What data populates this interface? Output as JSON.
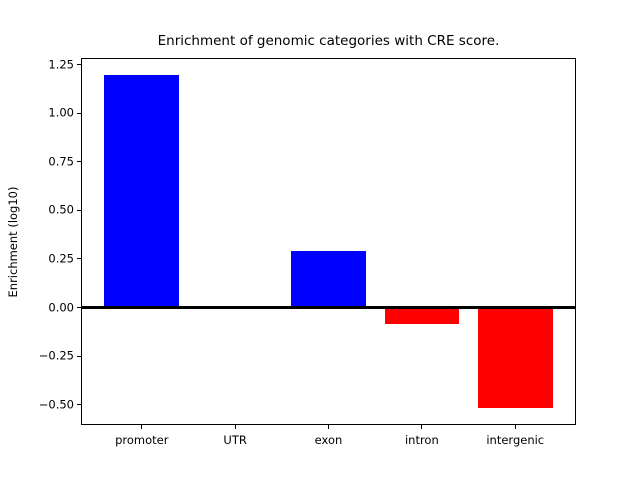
{
  "chart_data": {
    "type": "bar",
    "title": "Enrichment of genomic categories with CRE score.",
    "xlabel": "",
    "ylabel": "Enrichment (log10)",
    "categories": [
      "promoter",
      "UTR",
      "exon",
      "intron",
      "intergenic"
    ],
    "values": [
      1.2,
      0.0,
      0.29,
      -0.086,
      -0.52
    ],
    "bar_colors": [
      "#0000ff",
      "#0000ff",
      "#0000ff",
      "#ff0000",
      "#ff0000"
    ],
    "positive_color": "#0000ff",
    "negative_color": "#ff0000",
    "ylim": [
      -0.6,
      1.28
    ],
    "xlim": [
      -0.64,
      4.64
    ],
    "bar_width": 0.8,
    "yticks": [
      {
        "value": 1.25,
        "label": "1.25"
      },
      {
        "value": 1.0,
        "label": "1.00"
      },
      {
        "value": 0.75,
        "label": "0.75"
      },
      {
        "value": 0.5,
        "label": "0.50"
      },
      {
        "value": 0.25,
        "label": "0.25"
      },
      {
        "value": 0.0,
        "label": "0.00"
      },
      {
        "value": -0.25,
        "label": "−0.25"
      },
      {
        "value": -0.5,
        "label": "−0.50"
      }
    ],
    "zero_line": true,
    "grid": false,
    "legend": "none",
    "background_color": "#ffffff",
    "axes_color": "#000000"
  }
}
